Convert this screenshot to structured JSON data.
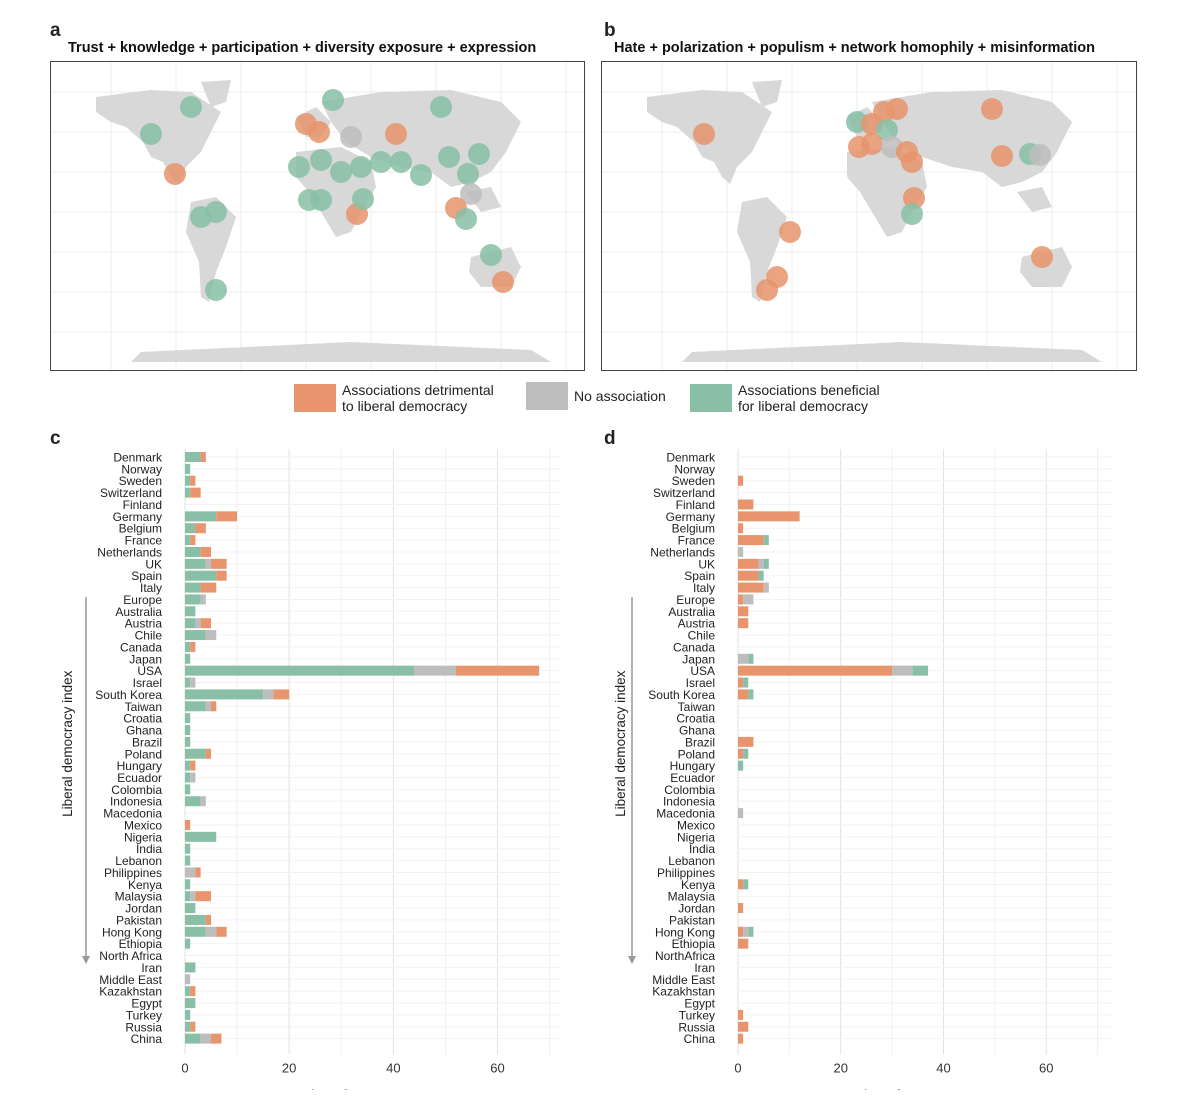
{
  "colors": {
    "detrimental": "#E8946C",
    "none": "#BDBDBD",
    "beneficial": "#88BFA6",
    "land": "#D8D8D8",
    "grid": "#E6E6E6"
  },
  "panels": {
    "a": {
      "letter": "a",
      "title": "Trust + knowledge + participation + diversity exposure + expression"
    },
    "b": {
      "letter": "b",
      "title": "Hate + polarization + populism + network homophily + misinformation"
    },
    "c": {
      "letter": "c"
    },
    "d": {
      "letter": "d"
    }
  },
  "legend": {
    "detrimental_line1": "Associations detrimental",
    "detrimental_line2": "to liberal democracy",
    "none": "No association",
    "beneficial_line1": "Associations beneficial",
    "beneficial_line2": "for liberal democracy"
  },
  "chart_data": [
    {
      "type": "bar",
      "orientation": "horizontal-stacked",
      "panel": "c",
      "xlabel": "Number of measurements",
      "ylabel": "Liberal democracy index",
      "xlim": [
        0,
        72
      ],
      "xticks": [
        0,
        20,
        40,
        60
      ],
      "series_names": [
        "Associations beneficial for liberal democracy",
        "No association",
        "Associations detrimental to liberal democracy"
      ],
      "categories": [
        "Denmark",
        "Norway",
        "Sweden",
        "Switzerland",
        "Finland",
        "Germany",
        "Belgium",
        "France",
        "Netherlands",
        "UK",
        "Spain",
        "Italy",
        "Europe",
        "Australia",
        "Austria",
        "Chile",
        "Canada",
        "Japan",
        "USA",
        "Israel",
        "South Korea",
        "Taiwan",
        "Croatia",
        "Ghana",
        "Brazil",
        "Poland",
        "Hungary",
        "Ecuador",
        "Colombia",
        "Indonesia",
        "Macedonia",
        "Mexico",
        "Nigeria",
        "India",
        "Lebanon",
        "Philippines",
        "Kenya",
        "Malaysia",
        "Jordan",
        "Pakistan",
        "Hong Kong",
        "Ethiopia",
        "North Africa",
        "Iran",
        "Middle East",
        "Kazakhstan",
        "Egypt",
        "Turkey",
        "Russia",
        "China"
      ],
      "beneficial": [
        3,
        1,
        1,
        1,
        0,
        6,
        2,
        1,
        3,
        4,
        6,
        3,
        3,
        2,
        2,
        4,
        1,
        1,
        44,
        1,
        15,
        4,
        1,
        1,
        1,
        4,
        1,
        1,
        1,
        3,
        0,
        0,
        6,
        1,
        1,
        0,
        1,
        1,
        2,
        4,
        4,
        1,
        0,
        2,
        0,
        1,
        2,
        1,
        1,
        3
      ],
      "none": [
        0,
        0,
        0,
        0,
        0,
        0,
        0,
        0,
        0,
        1,
        0,
        0,
        1,
        0,
        1,
        2,
        0,
        0,
        8,
        1,
        2,
        1,
        0,
        0,
        0,
        0,
        0,
        1,
        0,
        1,
        0,
        0,
        0,
        0,
        0,
        2,
        0,
        1,
        0,
        0,
        2,
        0,
        0,
        0,
        1,
        0,
        0,
        0,
        0,
        2
      ],
      "detrimental": [
        1,
        0,
        1,
        2,
        0,
        4,
        2,
        1,
        2,
        3,
        2,
        3,
        0,
        0,
        2,
        0,
        1,
        0,
        16,
        0,
        3,
        1,
        0,
        0,
        0,
        1,
        1,
        0,
        0,
        0,
        0,
        1,
        0,
        0,
        0,
        1,
        0,
        3,
        0,
        1,
        2,
        0,
        0,
        0,
        0,
        1,
        0,
        0,
        1,
        2
      ]
    },
    {
      "type": "bar",
      "orientation": "horizontal-stacked",
      "panel": "d",
      "xlabel": "Number of measurements",
      "ylabel": "Liberal democracy index",
      "xlim": [
        0,
        73
      ],
      "xticks": [
        0,
        20,
        40,
        60
      ],
      "series_names": [
        "Associations detrimental to liberal democracy",
        "No association",
        "Associations beneficial for liberal democracy"
      ],
      "categories": [
        "Denmark",
        "Norway",
        "Sweden",
        "Switzerland",
        "Finland",
        "Germany",
        "Belgium",
        "France",
        "Netherlands",
        "UK",
        "Spain",
        "Italy",
        "Europe",
        "Australia",
        "Austria",
        "Chile",
        "Canada",
        "Japan",
        "USA",
        "Israel",
        "South Korea",
        "Taiwan",
        "Croatia",
        "Ghana",
        "Brazil",
        "Poland",
        "Hungary",
        "Ecuador",
        "Colombia",
        "Indonesia",
        "Macedonia",
        "Mexico",
        "Nigeria",
        "India",
        "Lebanon",
        "Philippines",
        "Kenya",
        "Malaysia",
        "Jordan",
        "Pakistan",
        "Hong Kong",
        "Ethiopia",
        "NorthAfrica",
        "Iran",
        "Middle East",
        "Kazakhstan",
        "Egypt",
        "Turkey",
        "Russia",
        "China"
      ],
      "detrimental": [
        0,
        0,
        1,
        0,
        3,
        12,
        1,
        5,
        0,
        4,
        4,
        5,
        1,
        2,
        2,
        0,
        0,
        0,
        30,
        1,
        2,
        0,
        0,
        0,
        3,
        1,
        0,
        0,
        0,
        0,
        0,
        0,
        0,
        0,
        0,
        0,
        1,
        0,
        1,
        0,
        1,
        2,
        0,
        0,
        0,
        0,
        0,
        1,
        2,
        1
      ],
      "none": [
        0,
        0,
        0,
        0,
        0,
        0,
        0,
        0,
        1,
        1,
        0,
        1,
        2,
        0,
        0,
        0,
        0,
        2,
        4,
        0,
        0,
        0,
        0,
        0,
        0,
        0,
        0,
        0,
        0,
        0,
        1,
        0,
        0,
        0,
        0,
        0,
        0,
        0,
        0,
        0,
        1,
        0,
        0,
        0,
        0,
        0,
        0,
        0,
        0,
        0
      ],
      "beneficial": [
        0,
        0,
        0,
        0,
        0,
        0,
        0,
        1,
        0,
        1,
        1,
        0,
        0,
        0,
        0,
        0,
        0,
        1,
        3,
        1,
        1,
        0,
        0,
        0,
        0,
        1,
        1,
        0,
        0,
        0,
        0,
        0,
        0,
        0,
        0,
        0,
        1,
        0,
        0,
        0,
        1,
        0,
        0,
        0,
        0,
        0,
        0,
        0,
        0,
        0
      ]
    }
  ]
}
